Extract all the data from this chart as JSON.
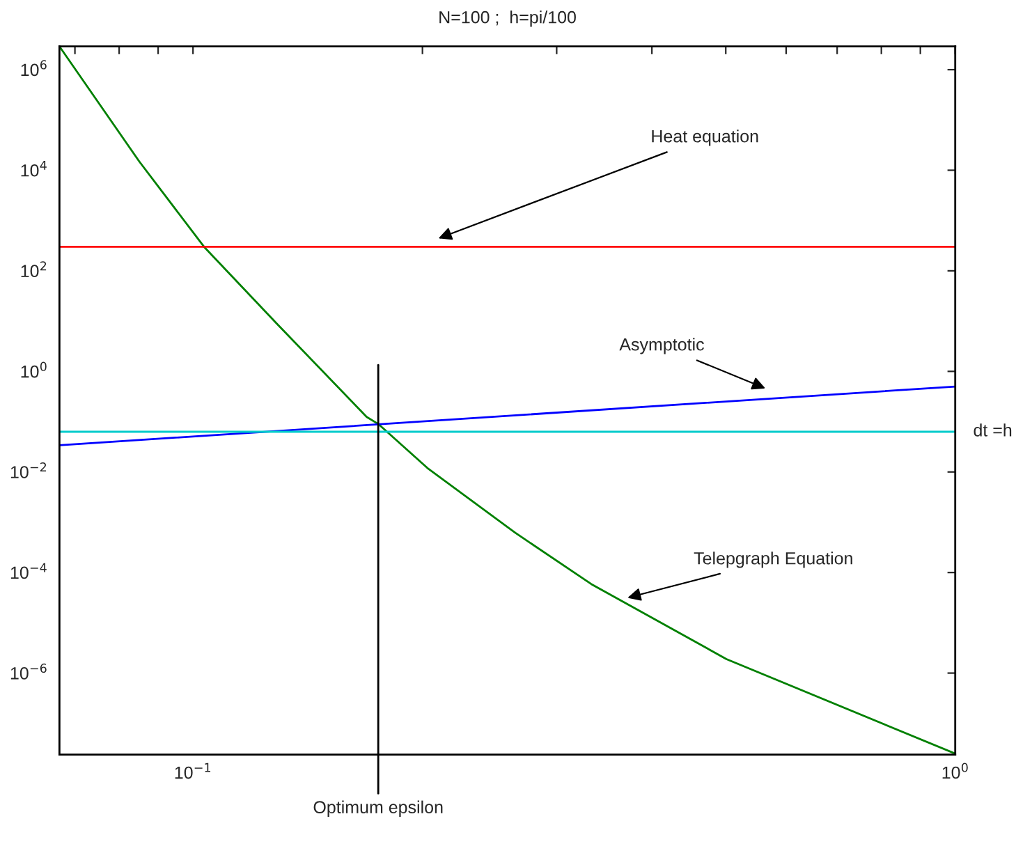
{
  "chart_data": {
    "type": "line",
    "title": "N=100 ;  h=pi/100",
    "log": "xy",
    "grid": false,
    "marker": "none",
    "line_style": "solid",
    "xlim": [
      0.0668,
      1
    ],
    "ylim": [
      2.4e-08,
      2900000.0
    ],
    "xticks": [
      {
        "value": 0.07,
        "label": null
      },
      {
        "value": 0.08,
        "label": null
      },
      {
        "value": 0.09,
        "label": null
      },
      {
        "value": 0.1,
        "label": "10$^{−1}$"
      },
      {
        "value": 0.2,
        "label": null
      },
      {
        "value": 0.3,
        "label": null
      },
      {
        "value": 0.4,
        "label": null
      },
      {
        "value": 0.5,
        "label": null
      },
      {
        "value": 0.6,
        "label": null
      },
      {
        "value": 0.7,
        "label": null
      },
      {
        "value": 0.8,
        "label": null
      },
      {
        "value": 0.9,
        "label": null
      },
      {
        "value": 1,
        "label": "10$^{0}$"
      }
    ],
    "yticks": [
      {
        "value": 1e-06,
        "label": "10$^{−6}$"
      },
      {
        "value": 0.0001,
        "label": "10$^{−4}$"
      },
      {
        "value": 0.01,
        "label": "10$^{−2}$"
      },
      {
        "value": 1,
        "label": "10$^{0}$"
      },
      {
        "value": 100,
        "label": "10$^{2}$"
      },
      {
        "value": 10000,
        "label": "10$^{4}$"
      },
      {
        "value": 1000000,
        "label": "10$^{6}$"
      }
    ],
    "series": [
      {
        "color": "#008000",
        "x": [
          0.0668,
          0.085,
          0.1034,
          0.129,
          0.169,
          0.175,
          0.203,
          0.265,
          0.333,
          0.501,
          1
        ],
        "values": [
          2900000.0,
          15000,
          300,
          8.7,
          0.124,
          0.09,
          0.012,
          0.00061,
          5.9e-05,
          1.9e-06,
          2.5e-08
        ]
      },
      {
        "color": "#0000ff",
        "x": [
          0.0668,
          1
        ],
        "values": [
          0.034,
          0.5
        ]
      }
    ],
    "ref_lines": [
      {
        "axis": "y",
        "value": 300,
        "color": "#ff0000"
      },
      {
        "axis": "y",
        "value": 0.063,
        "color": "#00cccc",
        "label": "dt =h"
      },
      {
        "axis": "x",
        "value": 0.175,
        "color": "#000000",
        "label": "Optimum epsilon"
      }
    ],
    "annotations": [
      "Heat equation",
      "Asymptotic",
      "Telepgraph Equation"
    ]
  }
}
